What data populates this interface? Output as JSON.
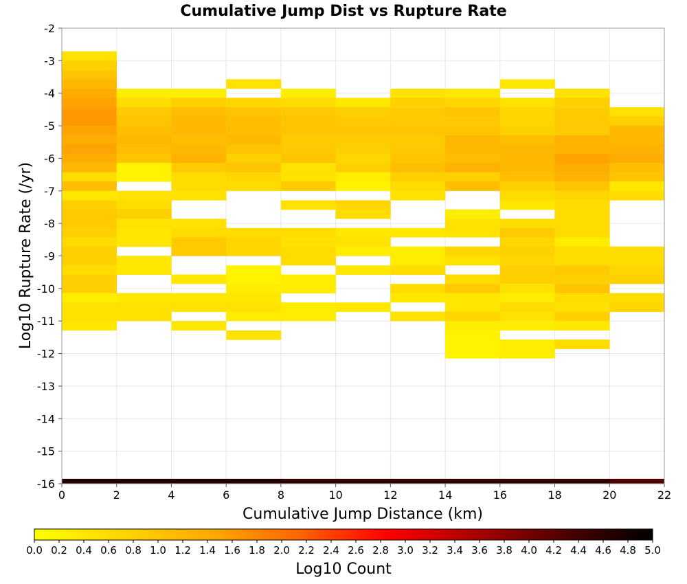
{
  "chart_data": {
    "type": "heatmap",
    "title": "Cumulative Jump Dist vs Rupture Rate",
    "xlabel": "Cumulative Jump Distance (km)",
    "ylabel": "Log10 Rupture Rate (/yr)",
    "xlim": [
      0,
      22
    ],
    "ylim": [
      -16,
      -2
    ],
    "x_ticks": [
      "0",
      "2",
      "4",
      "6",
      "8",
      "10",
      "12",
      "14",
      "16",
      "18",
      "20",
      "22"
    ],
    "y_ticks": [
      "-2",
      "-3",
      "-4",
      "-5",
      "-6",
      "-7",
      "-8",
      "-9",
      "-10",
      "-11",
      "-12",
      "-13",
      "-14",
      "-15",
      "-16"
    ],
    "x_bin_width": 2,
    "y_bin_height": 0.286,
    "grid": true,
    "colorbar": {
      "label": "Log10 Count",
      "min": 0.0,
      "max": 5.0,
      "ticks": [
        "0.0",
        "0.2",
        "0.4",
        "0.6",
        "0.8",
        "1.0",
        "1.2",
        "1.4",
        "1.6",
        "1.8",
        "2.0",
        "2.2",
        "2.4",
        "2.6",
        "2.8",
        "3.0",
        "3.2",
        "3.4",
        "3.6",
        "3.8",
        "4.0",
        "4.2",
        "4.4",
        "4.6",
        "4.8",
        "5.0"
      ],
      "colors": [
        "#ffff00",
        "#ffd500",
        "#ffaa00",
        "#ff6400",
        "#ff0000",
        "#aa0000",
        "#500000",
        "#000000"
      ]
    },
    "columns": [
      {
        "x": 0,
        "cells": [
          [
            -2.71,
            0.5
          ],
          [
            -3.0,
            0.8
          ],
          [
            -3.29,
            1.0
          ],
          [
            -3.57,
            1.2
          ],
          [
            -3.86,
            1.4
          ],
          [
            -4.14,
            1.5
          ],
          [
            -4.43,
            1.6
          ],
          [
            -4.71,
            1.6
          ],
          [
            -5.0,
            1.5
          ],
          [
            -5.29,
            1.4
          ],
          [
            -5.57,
            1.5
          ],
          [
            -5.86,
            1.4
          ],
          [
            -6.14,
            1.2
          ],
          [
            -6.43,
            0.6
          ],
          [
            -6.71,
            1.1
          ],
          [
            -7.0,
            0.4
          ],
          [
            -7.29,
            0.8
          ],
          [
            -7.57,
            0.9
          ],
          [
            -7.86,
            0.9
          ],
          [
            -8.14,
            0.8
          ],
          [
            -8.43,
            0.6
          ],
          [
            -8.71,
            0.8
          ],
          [
            -9.0,
            0.8
          ],
          [
            -9.29,
            0.6
          ],
          [
            -9.57,
            0.8
          ],
          [
            -9.86,
            0.8
          ],
          [
            -10.14,
            0.3
          ],
          [
            -10.43,
            0.5
          ],
          [
            -10.71,
            0.5
          ],
          [
            -11.0,
            0.4
          ]
        ]
      },
      {
        "x": 2,
        "cells": [
          [
            -3.86,
            0.3
          ],
          [
            -4.14,
            0.6
          ],
          [
            -4.43,
            0.9
          ],
          [
            -4.71,
            1.0
          ],
          [
            -5.0,
            1.1
          ],
          [
            -5.29,
            1.2
          ],
          [
            -5.57,
            1.1
          ],
          [
            -5.86,
            1.0
          ],
          [
            -6.14,
            0.2
          ],
          [
            -6.43,
            0.2
          ],
          [
            -7.0,
            0.5
          ],
          [
            -7.29,
            0.6
          ],
          [
            -7.57,
            0.8
          ],
          [
            -7.86,
            0.5
          ],
          [
            -8.14,
            0.4
          ],
          [
            -8.43,
            0.4
          ],
          [
            -9.0,
            0.4
          ],
          [
            -9.29,
            0.4
          ],
          [
            -10.14,
            0.4
          ],
          [
            -10.43,
            0.5
          ],
          [
            -10.71,
            0.5
          ]
        ]
      },
      {
        "x": 4,
        "cells": [
          [
            -3.86,
            0.3
          ],
          [
            -4.14,
            0.8
          ],
          [
            -4.43,
            1.1
          ],
          [
            -4.71,
            1.2
          ],
          [
            -5.0,
            1.2
          ],
          [
            -5.29,
            1.1
          ],
          [
            -5.57,
            1.2
          ],
          [
            -5.86,
            1.3
          ],
          [
            -6.14,
            0.9
          ],
          [
            -6.43,
            0.6
          ],
          [
            -6.71,
            0.6
          ],
          [
            -7.0,
            0.5
          ],
          [
            -7.86,
            0.5
          ],
          [
            -8.14,
            0.6
          ],
          [
            -8.43,
            0.9
          ],
          [
            -8.71,
            0.9
          ],
          [
            -9.57,
            0.4
          ],
          [
            -10.14,
            0.4
          ],
          [
            -10.43,
            0.5
          ],
          [
            -11.0,
            0.4
          ]
        ]
      },
      {
        "x": 6,
        "cells": [
          [
            -3.57,
            0.5
          ],
          [
            -4.14,
            0.7
          ],
          [
            -4.43,
            1.0
          ],
          [
            -4.71,
            1.1
          ],
          [
            -5.0,
            1.1
          ],
          [
            -5.29,
            1.2
          ],
          [
            -5.57,
            1.0
          ],
          [
            -5.86,
            0.8
          ],
          [
            -6.14,
            1.0
          ],
          [
            -6.43,
            0.7
          ],
          [
            -6.71,
            0.6
          ],
          [
            -8.14,
            0.6
          ],
          [
            -8.43,
            0.7
          ],
          [
            -8.71,
            0.7
          ],
          [
            -9.29,
            0.2
          ],
          [
            -9.57,
            0.2
          ],
          [
            -9.86,
            0.3
          ],
          [
            -10.14,
            0.4
          ],
          [
            -10.43,
            0.5
          ],
          [
            -10.71,
            0.3
          ],
          [
            -11.29,
            0.5
          ]
        ]
      },
      {
        "x": 8,
        "cells": [
          [
            -3.86,
            0.3
          ],
          [
            -4.14,
            0.6
          ],
          [
            -4.43,
            0.9
          ],
          [
            -4.71,
            1.0
          ],
          [
            -5.0,
            1.0
          ],
          [
            -5.29,
            0.9
          ],
          [
            -5.57,
            0.9
          ],
          [
            -5.86,
            1.0
          ],
          [
            -6.14,
            0.5
          ],
          [
            -6.43,
            0.5
          ],
          [
            -6.71,
            0.9
          ],
          [
            -7.29,
            0.5
          ],
          [
            -8.14,
            0.6
          ],
          [
            -8.43,
            0.5
          ],
          [
            -8.71,
            0.6
          ],
          [
            -9.0,
            0.6
          ],
          [
            -9.57,
            0.3
          ],
          [
            -9.86,
            0.3
          ],
          [
            -10.43,
            0.3
          ],
          [
            -10.71,
            0.3
          ]
        ]
      },
      {
        "x": 10,
        "cells": [
          [
            -4.14,
            0.4
          ],
          [
            -4.43,
            0.8
          ],
          [
            -4.71,
            0.9
          ],
          [
            -5.0,
            1.0
          ],
          [
            -5.29,
            0.9
          ],
          [
            -5.57,
            0.8
          ],
          [
            -5.86,
            0.7
          ],
          [
            -6.14,
            0.8
          ],
          [
            -6.43,
            0.3
          ],
          [
            -6.71,
            0.2
          ],
          [
            -7.29,
            0.7
          ],
          [
            -7.57,
            0.6
          ],
          [
            -8.14,
            0.4
          ],
          [
            -8.43,
            0.5
          ],
          [
            -8.71,
            0.3
          ],
          [
            -9.29,
            0.4
          ],
          [
            -10.43,
            0.4
          ]
        ]
      },
      {
        "x": 12,
        "cells": [
          [
            -3.86,
            0.5
          ],
          [
            -4.14,
            0.8
          ],
          [
            -4.43,
            0.9
          ],
          [
            -4.71,
            0.9
          ],
          [
            -5.0,
            1.0
          ],
          [
            -5.29,
            0.9
          ],
          [
            -5.57,
            0.9
          ],
          [
            -5.86,
            1.0
          ],
          [
            -6.14,
            1.1
          ],
          [
            -6.43,
            0.8
          ],
          [
            -6.71,
            0.6
          ],
          [
            -7.0,
            0.5
          ],
          [
            -8.14,
            0.4
          ],
          [
            -8.71,
            0.3
          ],
          [
            -9.0,
            0.3
          ],
          [
            -9.29,
            0.6
          ],
          [
            -9.86,
            0.6
          ],
          [
            -10.14,
            0.4
          ],
          [
            -10.71,
            0.5
          ]
        ]
      },
      {
        "x": 14,
        "cells": [
          [
            -3.86,
            0.4
          ],
          [
            -4.14,
            0.7
          ],
          [
            -4.43,
            1.0
          ],
          [
            -4.71,
            0.9
          ],
          [
            -5.0,
            1.0
          ],
          [
            -5.29,
            1.2
          ],
          [
            -5.57,
            1.2
          ],
          [
            -5.86,
            1.1
          ],
          [
            -6.14,
            1.3
          ],
          [
            -6.43,
            0.8
          ],
          [
            -6.71,
            1.1
          ],
          [
            -7.57,
            0.3
          ],
          [
            -7.86,
            0.5
          ],
          [
            -8.14,
            0.5
          ],
          [
            -8.71,
            0.7
          ],
          [
            -9.0,
            0.5
          ],
          [
            -9.57,
            0.6
          ],
          [
            -9.86,
            0.9
          ],
          [
            -10.14,
            0.4
          ],
          [
            -10.43,
            0.4
          ],
          [
            -10.71,
            0.7
          ],
          [
            -11.0,
            0.3
          ],
          [
            -11.29,
            0.2
          ],
          [
            -11.57,
            0.2
          ],
          [
            -11.86,
            0.2
          ]
        ]
      },
      {
        "x": 16,
        "cells": [
          [
            -3.57,
            0.4
          ],
          [
            -4.14,
            0.5
          ],
          [
            -4.43,
            0.7
          ],
          [
            -4.71,
            0.7
          ],
          [
            -5.0,
            0.8
          ],
          [
            -5.29,
            1.1
          ],
          [
            -5.57,
            1.2
          ],
          [
            -5.86,
            1.2
          ],
          [
            -6.14,
            1.2
          ],
          [
            -6.43,
            1.1
          ],
          [
            -6.71,
            0.8
          ],
          [
            -7.0,
            0.6
          ],
          [
            -7.29,
            0.4
          ],
          [
            -7.86,
            0.6
          ],
          [
            -8.14,
            0.9
          ],
          [
            -8.43,
            0.7
          ],
          [
            -8.71,
            0.8
          ],
          [
            -9.0,
            0.7
          ],
          [
            -9.29,
            0.8
          ],
          [
            -9.57,
            0.8
          ],
          [
            -9.86,
            0.5
          ],
          [
            -10.14,
            0.3
          ],
          [
            -10.43,
            0.6
          ],
          [
            -10.71,
            0.5
          ],
          [
            -11.0,
            0.3
          ],
          [
            -11.57,
            0.3
          ],
          [
            -11.86,
            0.3
          ]
        ]
      },
      {
        "x": 18,
        "cells": [
          [
            -3.86,
            0.5
          ],
          [
            -4.14,
            0.8
          ],
          [
            -4.43,
            0.9
          ],
          [
            -4.71,
            0.9
          ],
          [
            -5.0,
            0.9
          ],
          [
            -5.29,
            1.3
          ],
          [
            -5.57,
            1.3
          ],
          [
            -5.86,
            1.5
          ],
          [
            -6.14,
            1.4
          ],
          [
            -6.43,
            1.3
          ],
          [
            -6.71,
            1.0
          ],
          [
            -7.0,
            0.7
          ],
          [
            -7.29,
            0.6
          ],
          [
            -7.57,
            0.6
          ],
          [
            -7.86,
            0.6
          ],
          [
            -8.14,
            0.6
          ],
          [
            -8.43,
            0.3
          ],
          [
            -8.71,
            0.6
          ],
          [
            -9.0,
            0.6
          ],
          [
            -9.29,
            0.9
          ],
          [
            -9.57,
            0.8
          ],
          [
            -9.86,
            1.0
          ],
          [
            -10.14,
            0.6
          ],
          [
            -10.43,
            0.5
          ],
          [
            -10.71,
            0.8
          ],
          [
            -11.0,
            0.4
          ],
          [
            -11.57,
            0.6
          ]
        ]
      },
      {
        "x": 20,
        "cells": [
          [
            -4.43,
            0.5
          ],
          [
            -4.71,
            0.8
          ],
          [
            -5.0,
            1.2
          ],
          [
            -5.29,
            1.2
          ],
          [
            -5.57,
            1.3
          ],
          [
            -5.86,
            1.4
          ],
          [
            -6.14,
            1.1
          ],
          [
            -6.43,
            1.0
          ],
          [
            -6.71,
            0.4
          ],
          [
            -7.0,
            0.6
          ],
          [
            -8.71,
            0.6
          ],
          [
            -9.0,
            0.6
          ],
          [
            -9.29,
            0.7
          ],
          [
            -9.57,
            0.8
          ],
          [
            -10.14,
            0.6
          ],
          [
            -10.43,
            0.7
          ]
        ]
      }
    ],
    "bottom_row": {
      "y": -16,
      "height": 0.15,
      "values": [
        4.7,
        4.7,
        4.7,
        4.7,
        4.6,
        4.6,
        4.6,
        4.6,
        4.6,
        4.6,
        4.3
      ]
    }
  }
}
